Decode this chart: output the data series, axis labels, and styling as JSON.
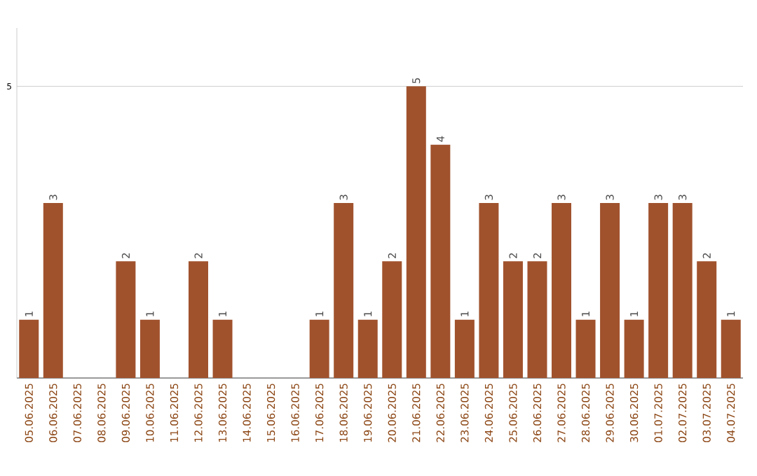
{
  "chart_data": {
    "type": "bar",
    "categories": [
      "05.06.2025",
      "06.06.2025",
      "07.06.2025",
      "08.06.2025",
      "09.06.2025",
      "10.06.2025",
      "11.06.2025",
      "12.06.2025",
      "13.06.2025",
      "14.06.2025",
      "15.06.2025",
      "16.06.2025",
      "17.06.2025",
      "18.06.2025",
      "19.06.2025",
      "20.06.2025",
      "21.06.2025",
      "22.06.2025",
      "23.06.2025",
      "24.06.2025",
      "25.06.2025",
      "26.06.2025",
      "27.06.2025",
      "28.06.2025",
      "29.06.2025",
      "30.06.2025",
      "01.07.2025",
      "02.07.2025",
      "03.07.2025",
      "04.07.2025"
    ],
    "values": [
      1,
      3,
      0,
      0,
      2,
      1,
      0,
      2,
      1,
      0,
      0,
      0,
      1,
      3,
      1,
      2,
      5,
      4,
      1,
      3,
      2,
      2,
      3,
      1,
      3,
      1,
      3,
      3,
      2,
      1
    ],
    "value_labels": [
      "1",
      "3",
      null,
      null,
      "2",
      "1",
      null,
      "2",
      "1",
      null,
      null,
      null,
      "1",
      "3",
      "1",
      "2",
      "5",
      "4",
      "1",
      "3",
      "2",
      "2",
      "3",
      "1",
      "3",
      "1",
      "3",
      "3",
      "2",
      "1"
    ],
    "color": "#a0522d",
    "ylim": [
      0,
      6
    ],
    "yticks": [
      5
    ],
    "grid": "y"
  }
}
